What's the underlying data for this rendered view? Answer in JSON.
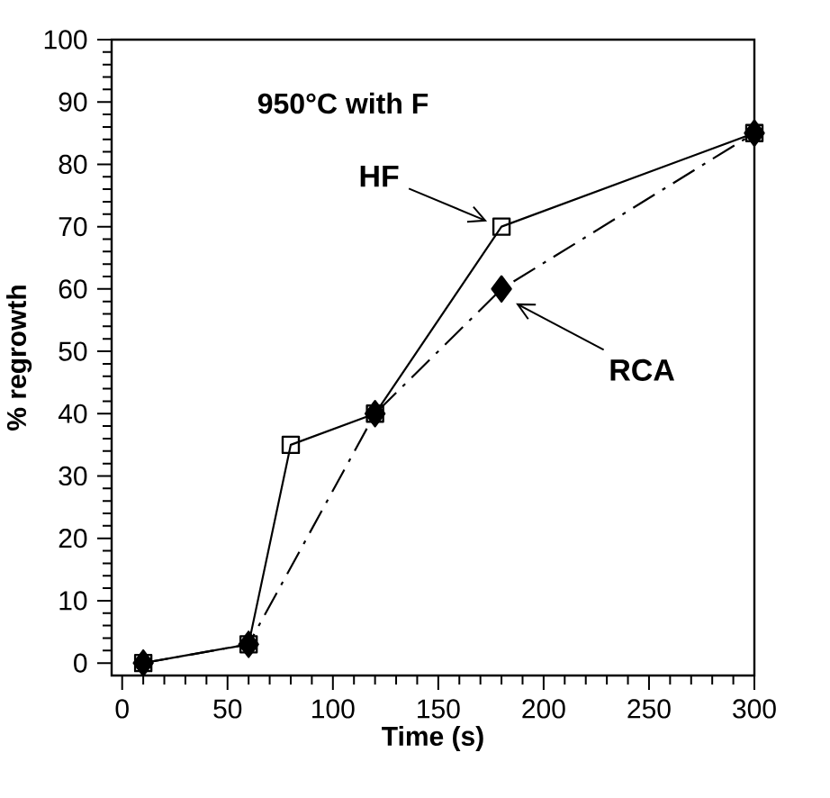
{
  "chart_data": {
    "type": "line",
    "xlabel": "Time (s)",
    "ylabel": "% regrowth",
    "annotations": [
      "950°C with F"
    ],
    "xlim": [
      -5,
      300
    ],
    "ylim": [
      -2,
      100
    ],
    "xticks": [
      0,
      50,
      100,
      150,
      200,
      250,
      300
    ],
    "yticks": [
      0,
      10,
      20,
      30,
      40,
      50,
      60,
      70,
      80,
      90,
      100
    ],
    "grid": false,
    "series": [
      {
        "name": "HF",
        "color": "#000000",
        "marker": "square",
        "line_style": "solid",
        "x": [
          10,
          60,
          80,
          120,
          180,
          300
        ],
        "values": [
          0,
          3,
          35,
          40,
          70,
          85
        ]
      },
      {
        "name": "RCA",
        "color": "#000000",
        "marker": "diamond",
        "line_style": "dashdot",
        "x": [
          10,
          60,
          120,
          180,
          300
        ],
        "values": [
          0,
          3,
          40,
          60,
          85
        ]
      }
    ]
  }
}
